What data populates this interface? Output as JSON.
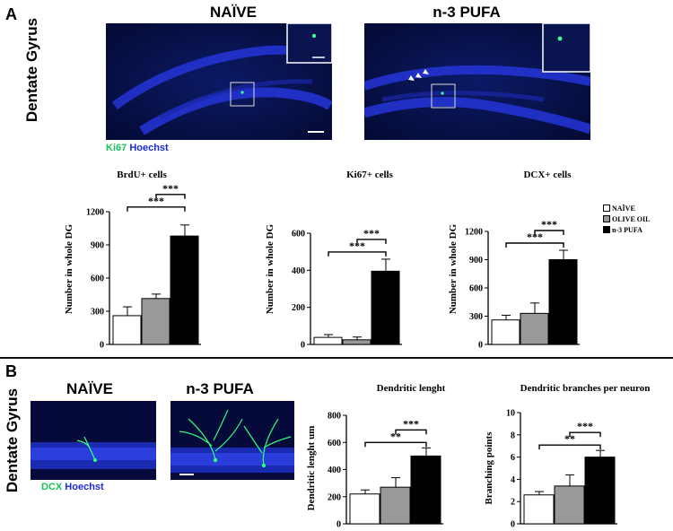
{
  "panel_a": {
    "letter": "A",
    "row_label": "Dentate Gyrus",
    "naive_title": "NAÏVE",
    "pufa_title": "n-3 PUFA",
    "stain_marker": "Ki67",
    "stain_nuclear": "Hoechst"
  },
  "panel_b": {
    "letter": "B",
    "row_label": "Dentate Gyrus",
    "naive_title": "NAÏVE",
    "pufa_title": "n-3 PUFA",
    "stain_marker": "DCX",
    "stain_nuclear": "Hoechst"
  },
  "legend": {
    "items": [
      {
        "label": "NAÏVE",
        "color": "#ffffff"
      },
      {
        "label": "OLIVE OIL",
        "color": "#999999"
      },
      {
        "label": "n-3 PUFA",
        "color": "#000000"
      }
    ]
  },
  "colors": {
    "naive": "#ffffff",
    "olive": "#999999",
    "pufa": "#000000",
    "hoechst": "#1b2bd6",
    "marker": "#19c35a"
  },
  "chart_data": [
    {
      "type": "bar",
      "title": "BrdU+ cells",
      "ylabel": "Number in whole DG",
      "categories": [
        "NAÏVE",
        "OLIVE OIL",
        "n-3 PUFA"
      ],
      "values": [
        260,
        415,
        980
      ],
      "errors": [
        80,
        40,
        100
      ],
      "ylim": [
        0,
        1200
      ],
      "yticks": [
        "0",
        "300",
        "600",
        "900",
        "1200"
      ],
      "significance": [
        "***",
        "***"
      ]
    },
    {
      "type": "bar",
      "title": "Ki67+ cells",
      "ylabel": "Number in whole DG",
      "categories": [
        "NAÏVE",
        "OLIVE OIL",
        "n-3 PUFA"
      ],
      "values": [
        38,
        25,
        395
      ],
      "errors": [
        15,
        15,
        65
      ],
      "ylim": [
        0,
        600
      ],
      "yticks": [
        "0",
        "200",
        "400",
        "600"
      ],
      "significance": [
        "***",
        "***"
      ]
    },
    {
      "type": "bar",
      "title": "DCX+ cells",
      "ylabel": "Number in whole DG",
      "categories": [
        "NAÏVE",
        "OLIVE OIL",
        "n-3 PUFA"
      ],
      "values": [
        260,
        330,
        900
      ],
      "errors": [
        50,
        110,
        100
      ],
      "ylim": [
        0,
        1200
      ],
      "yticks": [
        "0",
        "300",
        "600",
        "900",
        "1200"
      ],
      "significance": [
        "***",
        "***"
      ]
    },
    {
      "type": "bar",
      "title": "Dendritic lenght",
      "ylabel": "Dendritic lenght um",
      "categories": [
        "NAÏVE",
        "OLIVE OIL",
        "n-3 PUFA"
      ],
      "values": [
        220,
        270,
        500
      ],
      "errors": [
        30,
        70,
        60
      ],
      "ylim": [
        0,
        800
      ],
      "yticks": [
        "0",
        "200",
        "400",
        "600",
        "800"
      ],
      "significance": [
        "***",
        "**"
      ]
    },
    {
      "type": "bar",
      "title": "Dendritic branches per neuron",
      "ylabel": "Branching points",
      "categories": [
        "NAÏVE",
        "OLIVE OIL",
        "n-3 PUFA"
      ],
      "values": [
        2.6,
        3.4,
        6.0
      ],
      "errors": [
        0.3,
        1.0,
        0.6
      ],
      "ylim": [
        0,
        10
      ],
      "yticks": [
        "0",
        "2",
        "4",
        "6",
        "8",
        "10"
      ],
      "significance": [
        "***",
        "**"
      ]
    }
  ]
}
